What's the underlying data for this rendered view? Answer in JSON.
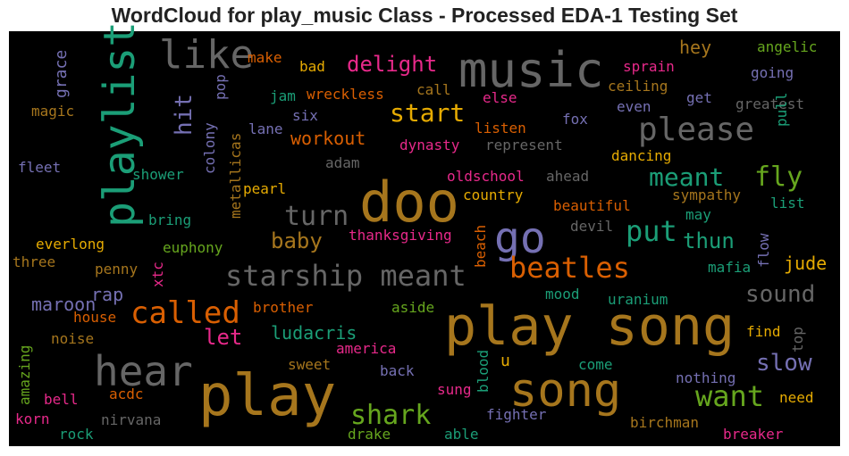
{
  "chart_data": {
    "type": "wordcloud",
    "title": "WordCloud for play_music Class - Processed EDA-1 Testing Set",
    "background": "#000000",
    "palette_name": "Dark2",
    "words": [
      {
        "text": "music",
        "size": 54,
        "color": "#666666"
      },
      {
        "text": "play song",
        "size": 60,
        "color": "#a6761d"
      },
      {
        "text": "play",
        "size": 64,
        "color": "#a6761d"
      },
      {
        "text": "doo",
        "size": 62,
        "color": "#a6761d"
      },
      {
        "text": "playlist",
        "size": 48,
        "color": "#1b9e77"
      },
      {
        "text": "like",
        "size": 44,
        "color": "#666666"
      },
      {
        "text": "song",
        "size": 52,
        "color": "#a6761d"
      },
      {
        "text": "hear",
        "size": 46,
        "color": "#666666"
      },
      {
        "text": "go",
        "size": 48,
        "color": "#7570b3"
      },
      {
        "text": "starship meant",
        "size": 32,
        "color": "#666666"
      },
      {
        "text": "please",
        "size": 36,
        "color": "#666666"
      },
      {
        "text": "called",
        "size": 34,
        "color": "#d95f02"
      },
      {
        "text": "beatles",
        "size": 32,
        "color": "#d95f02"
      },
      {
        "text": "want",
        "size": 32,
        "color": "#66a61e"
      },
      {
        "text": "shark",
        "size": 30,
        "color": "#66a61e"
      },
      {
        "text": "put",
        "size": 32,
        "color": "#1b9e77"
      },
      {
        "text": "meant",
        "size": 28,
        "color": "#1b9e77"
      },
      {
        "text": "fly",
        "size": 30,
        "color": "#66a61e"
      },
      {
        "text": "turn",
        "size": 30,
        "color": "#666666"
      },
      {
        "text": "start",
        "size": 28,
        "color": "#e6ab02"
      },
      {
        "text": "delight",
        "size": 24,
        "color": "#e7298a"
      },
      {
        "text": "hit",
        "size": 26,
        "color": "#7570b3"
      },
      {
        "text": "baby",
        "size": 24,
        "color": "#a6761d"
      },
      {
        "text": "thun",
        "size": 24,
        "color": "#1b9e77"
      },
      {
        "text": "sound",
        "size": 26,
        "color": "#666666"
      },
      {
        "text": "slow",
        "size": 26,
        "color": "#7570b3"
      },
      {
        "text": "let",
        "size": 24,
        "color": "#e7298a"
      },
      {
        "text": "ludacris",
        "size": 20,
        "color": "#1b9e77"
      },
      {
        "text": "workout",
        "size": 20,
        "color": "#d95f02"
      },
      {
        "text": "grace",
        "size": 18,
        "color": "#7570b3"
      },
      {
        "text": "hey",
        "size": 20,
        "color": "#a6761d"
      },
      {
        "text": "maroon",
        "size": 20,
        "color": "#7570b3"
      },
      {
        "text": "rap",
        "size": 20,
        "color": "#7570b3"
      },
      {
        "text": "jude",
        "size": 20,
        "color": "#e6ab02"
      },
      {
        "text": "make",
        "size": 16,
        "color": "#d95f02"
      },
      {
        "text": "bad",
        "size": 16,
        "color": "#e6ab02"
      },
      {
        "text": "angelic",
        "size": 16,
        "color": "#66a61e"
      },
      {
        "text": "going",
        "size": 16,
        "color": "#7570b3"
      },
      {
        "text": "sprain",
        "size": 16,
        "color": "#e7298a"
      },
      {
        "text": "ceiling",
        "size": 16,
        "color": "#a6761d"
      },
      {
        "text": "pop",
        "size": 16,
        "color": "#7570b3"
      },
      {
        "text": "jam",
        "size": 16,
        "color": "#1b9e77"
      },
      {
        "text": "wreckless",
        "size": 16,
        "color": "#d95f02"
      },
      {
        "text": "call",
        "size": 16,
        "color": "#a6761d"
      },
      {
        "text": "else",
        "size": 16,
        "color": "#e7298a"
      },
      {
        "text": "get",
        "size": 16,
        "color": "#7570b3"
      },
      {
        "text": "greatest",
        "size": 16,
        "color": "#666666"
      },
      {
        "text": "magic",
        "size": 16,
        "color": "#a6761d"
      },
      {
        "text": "six",
        "size": 16,
        "color": "#7570b3"
      },
      {
        "text": "listen",
        "size": 16,
        "color": "#d95f02"
      },
      {
        "text": "fox",
        "size": 16,
        "color": "#7570b3"
      },
      {
        "text": "even",
        "size": 16,
        "color": "#7570b3"
      },
      {
        "text": "pull",
        "size": 16,
        "color": "#1b9e77"
      },
      {
        "text": "colony",
        "size": 16,
        "color": "#7570b3"
      },
      {
        "text": "lane",
        "size": 16,
        "color": "#7570b3"
      },
      {
        "text": "metallicas",
        "size": 16,
        "color": "#a6761d"
      },
      {
        "text": "dynasty",
        "size": 16,
        "color": "#e7298a"
      },
      {
        "text": "represent",
        "size": 16,
        "color": "#666666"
      },
      {
        "text": "adam",
        "size": 16,
        "color": "#666666"
      },
      {
        "text": "dancing",
        "size": 16,
        "color": "#e6ab02"
      },
      {
        "text": "fleet",
        "size": 16,
        "color": "#7570b3"
      },
      {
        "text": "shower",
        "size": 16,
        "color": "#1b9e77"
      },
      {
        "text": "oldschool",
        "size": 16,
        "color": "#e7298a"
      },
      {
        "text": "ahead",
        "size": 16,
        "color": "#666666"
      },
      {
        "text": "pearl",
        "size": 16,
        "color": "#e6ab02"
      },
      {
        "text": "country",
        "size": 16,
        "color": "#e6ab02"
      },
      {
        "text": "sympathy",
        "size": 16,
        "color": "#a6761d"
      },
      {
        "text": "list",
        "size": 16,
        "color": "#1b9e77"
      },
      {
        "text": "bring",
        "size": 16,
        "color": "#1b9e77"
      },
      {
        "text": "beautiful",
        "size": 16,
        "color": "#d95f02"
      },
      {
        "text": "may",
        "size": 16,
        "color": "#1b9e77"
      },
      {
        "text": "devil",
        "size": 16,
        "color": "#666666"
      },
      {
        "text": "everlong",
        "size": 16,
        "color": "#e6ab02"
      },
      {
        "text": "euphony",
        "size": 16,
        "color": "#66a61e"
      },
      {
        "text": "thanksgiving",
        "size": 16,
        "color": "#e7298a"
      },
      {
        "text": "beach",
        "size": 16,
        "color": "#d95f02"
      },
      {
        "text": "flow",
        "size": 16,
        "color": "#7570b3"
      },
      {
        "text": "three",
        "size": 16,
        "color": "#a6761d"
      },
      {
        "text": "penny",
        "size": 16,
        "color": "#a6761d"
      },
      {
        "text": "mafia",
        "size": 16,
        "color": "#1b9e77"
      },
      {
        "text": "xtc",
        "size": 16,
        "color": "#e7298a"
      },
      {
        "text": "mood",
        "size": 16,
        "color": "#1b9e77"
      },
      {
        "text": "uranium",
        "size": 16,
        "color": "#1b9e77"
      },
      {
        "text": "house",
        "size": 16,
        "color": "#d95f02"
      },
      {
        "text": "brother",
        "size": 16,
        "color": "#d95f02"
      },
      {
        "text": "aside",
        "size": 16,
        "color": "#66a61e"
      },
      {
        "text": "amazing",
        "size": 16,
        "color": "#66a61e"
      },
      {
        "text": "noise",
        "size": 16,
        "color": "#a6761d"
      },
      {
        "text": "america",
        "size": 16,
        "color": "#e7298a"
      },
      {
        "text": "find",
        "size": 16,
        "color": "#e6ab02"
      },
      {
        "text": "top",
        "size": 16,
        "color": "#666666"
      },
      {
        "text": "sweet",
        "size": 16,
        "color": "#a6761d"
      },
      {
        "text": "blood",
        "size": 16,
        "color": "#1b9e77"
      },
      {
        "text": "u",
        "size": 18,
        "color": "#e6ab02"
      },
      {
        "text": "come",
        "size": 16,
        "color": "#1b9e77"
      },
      {
        "text": "back",
        "size": 16,
        "color": "#7570b3"
      },
      {
        "text": "nothing",
        "size": 16,
        "color": "#7570b3"
      },
      {
        "text": "bell",
        "size": 16,
        "color": "#e7298a"
      },
      {
        "text": "acdc",
        "size": 16,
        "color": "#d95f02"
      },
      {
        "text": "need",
        "size": 16,
        "color": "#e6ab02"
      },
      {
        "text": "sung",
        "size": 16,
        "color": "#e7298a"
      },
      {
        "text": "korn",
        "size": 16,
        "color": "#e7298a"
      },
      {
        "text": "nirvana",
        "size": 16,
        "color": "#666666"
      },
      {
        "text": "fighter",
        "size": 16,
        "color": "#7570b3"
      },
      {
        "text": "birchman",
        "size": 16,
        "color": "#a6761d"
      },
      {
        "text": "rock",
        "size": 16,
        "color": "#1b9e77"
      },
      {
        "text": "drake",
        "size": 16,
        "color": "#66a61e"
      },
      {
        "text": "able",
        "size": 16,
        "color": "#1b9e77"
      },
      {
        "text": "breaker",
        "size": 16,
        "color": "#e7298a"
      }
    ]
  }
}
